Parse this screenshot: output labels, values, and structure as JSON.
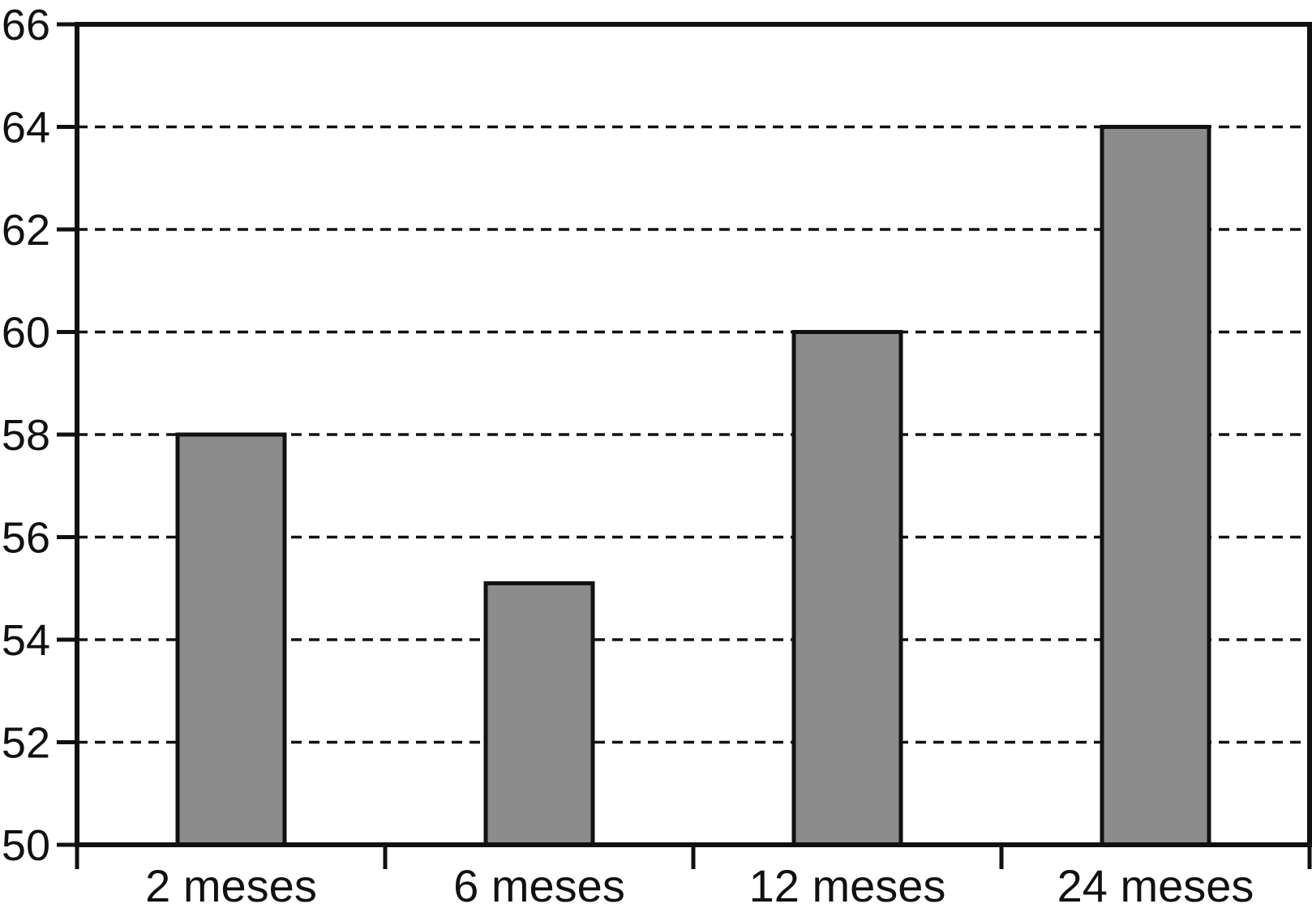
{
  "chart_data": {
    "type": "bar",
    "title": "",
    "xlabel": "",
    "ylabel": "",
    "categories": [
      "2 meses",
      "6 meses",
      "12 meses",
      "24 meses"
    ],
    "values": [
      58,
      55.1,
      60,
      64
    ],
    "ylim": [
      50,
      66
    ],
    "ytick_interval": 2,
    "ytick_labels": [
      "50",
      "52",
      "54",
      "56",
      "58",
      "60",
      "62",
      "64",
      "66"
    ],
    "grid": "dashed-horizontal",
    "legend": "none",
    "colors": {
      "bar_fill": "#8c8c8c",
      "bar_border": "#111111",
      "axis": "#111111",
      "gridline": "#111111",
      "text": "#111111",
      "background": "#ffffff"
    }
  }
}
